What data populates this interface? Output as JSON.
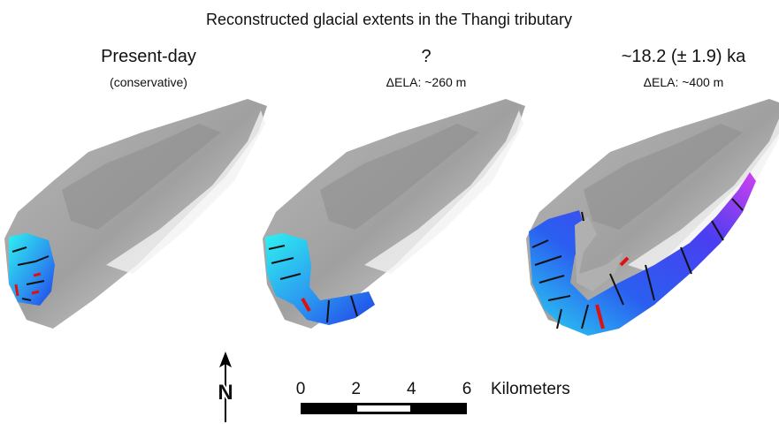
{
  "title": "Reconstructed glacial extents in the Thangi tributary",
  "panels": [
    {
      "title": "Present-day",
      "subtitle": "(conservative)"
    },
    {
      "title": "?",
      "subtitle": "ΔELA: ~260 m"
    },
    {
      "title": "~18.2 (± 1.9) ka",
      "subtitle": "ΔELA: ~400 m"
    }
  ],
  "north_arrow": {
    "label": "N"
  },
  "scale_bar": {
    "labels": [
      "0",
      "2",
      "4",
      "6"
    ],
    "unit": "Kilometers"
  }
}
